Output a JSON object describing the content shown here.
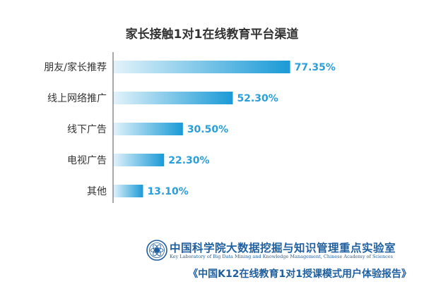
{
  "chart_data": {
    "type": "bar",
    "orientation": "horizontal",
    "title": "家长接触1对1在线教育平台渠道",
    "categories": [
      "朋友/家长推荐",
      "线上网络推广",
      "线下广告",
      "电视广告",
      "其他"
    ],
    "values": [
      77.35,
      52.3,
      30.5,
      22.3,
      13.1
    ],
    "value_labels": [
      "77.35%",
      "52.30%",
      "30.50%",
      "22.30%",
      "13.10%"
    ],
    "xlim": [
      0,
      100
    ],
    "grid": false,
    "legend": "none",
    "colors": {
      "bar_start": "#e3f3fb",
      "bar_end": "#1a9ad6",
      "value_label": "#2a9fd9",
      "axis": "#555555",
      "text": "#333333"
    }
  },
  "footer": {
    "institution": "中国科学院大数据挖掘与知识管理重点实验室",
    "institution_en": "Key Laboratory of Big Data Mining and Knowledge Management, Chinese Academy of Sciences",
    "report": "《中国K12在线教育1对1授课模式用户体验报告》",
    "emblem_icon": "cas-emblem-icon"
  }
}
